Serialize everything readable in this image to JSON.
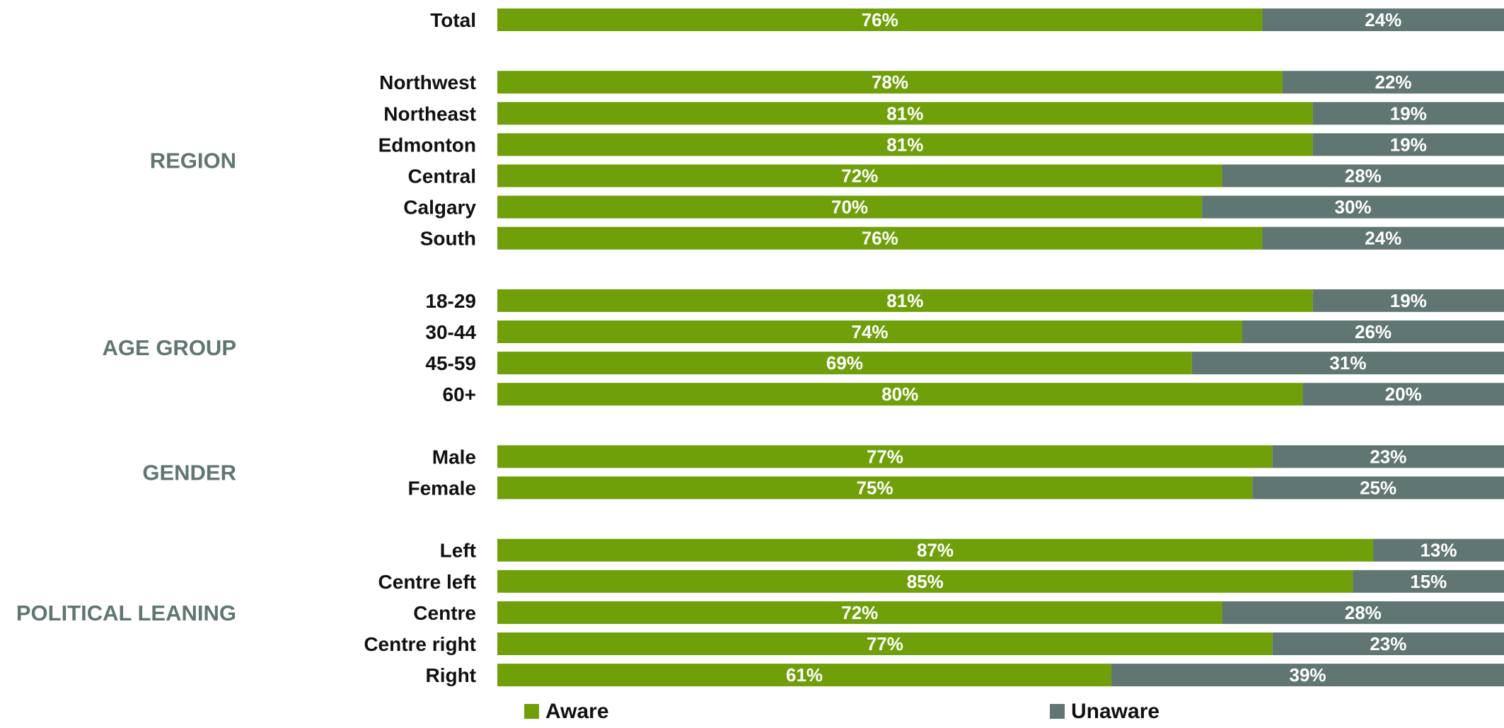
{
  "chart_data": {
    "type": "bar",
    "orientation": "horizontal",
    "stacked": true,
    "value_suffix": "%",
    "colors": {
      "aware": "#6fa00a",
      "unaware": "#607672",
      "group_label": "#607672",
      "row_label": "#111111"
    },
    "legend": {
      "position": "bottom",
      "items": [
        "Aware",
        "Unaware"
      ]
    },
    "rows": [
      {
        "group": "",
        "label": "Total",
        "aware": 76,
        "unaware": 24
      },
      {
        "group": "REGION",
        "label": "Northwest",
        "aware": 78,
        "unaware": 22
      },
      {
        "group": "REGION",
        "label": "Northeast",
        "aware": 81,
        "unaware": 19
      },
      {
        "group": "REGION",
        "label": "Edmonton",
        "aware": 81,
        "unaware": 19
      },
      {
        "group": "REGION",
        "label": "Central",
        "aware": 72,
        "unaware": 28
      },
      {
        "group": "REGION",
        "label": "Calgary",
        "aware": 70,
        "unaware": 30
      },
      {
        "group": "REGION",
        "label": "South",
        "aware": 76,
        "unaware": 24
      },
      {
        "group": "AGE GROUP",
        "label": "18-29",
        "aware": 81,
        "unaware": 19
      },
      {
        "group": "AGE GROUP",
        "label": "30-44",
        "aware": 74,
        "unaware": 26
      },
      {
        "group": "AGE GROUP",
        "label": "45-59",
        "aware": 69,
        "unaware": 31
      },
      {
        "group": "AGE GROUP",
        "label": "60+",
        "aware": 80,
        "unaware": 20
      },
      {
        "group": "GENDER",
        "label": "Male",
        "aware": 77,
        "unaware": 23
      },
      {
        "group": "GENDER",
        "label": "Female",
        "aware": 75,
        "unaware": 25
      },
      {
        "group": "POLITICAL LEANING",
        "label": "Left",
        "aware": 87,
        "unaware": 13
      },
      {
        "group": "POLITICAL LEANING",
        "label": "Centre left",
        "aware": 85,
        "unaware": 15
      },
      {
        "group": "POLITICAL LEANING",
        "label": "Centre",
        "aware": 72,
        "unaware": 28
      },
      {
        "group": "POLITICAL LEANING",
        "label": "Centre right",
        "aware": 77,
        "unaware": 23
      },
      {
        "group": "POLITICAL LEANING",
        "label": "Right",
        "aware": 61,
        "unaware": 39
      }
    ]
  }
}
